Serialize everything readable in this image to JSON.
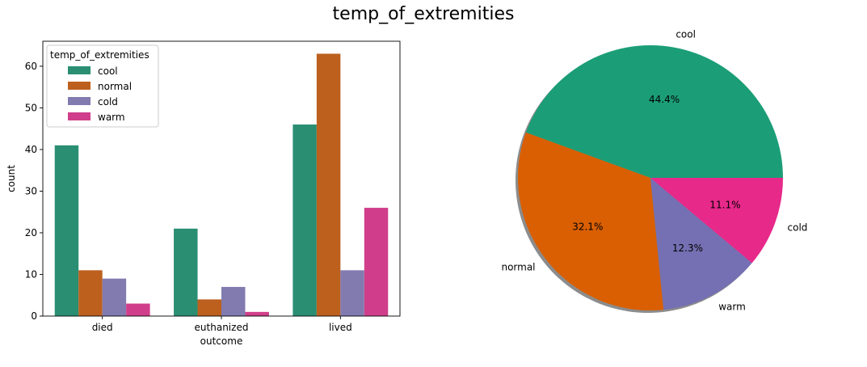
{
  "title": "temp_of_extremities",
  "chart_data": [
    {
      "type": "bar",
      "categories": [
        "died",
        "euthanized",
        "lived"
      ],
      "series": [
        {
          "name": "cool",
          "values": [
            41,
            21,
            46
          ],
          "color": "#2a8e72"
        },
        {
          "name": "normal",
          "values": [
            11,
            4,
            63
          ],
          "color": "#bd601e"
        },
        {
          "name": "cold",
          "values": [
            9,
            7,
            11
          ],
          "color": "#817bb0"
        },
        {
          "name": "warm",
          "values": [
            3,
            1,
            26
          ],
          "color": "#d03e8b"
        }
      ],
      "xlabel": "outcome",
      "ylabel": "count",
      "ylim": [
        0,
        66
      ],
      "yticks": [
        0,
        10,
        20,
        30,
        40,
        50,
        60
      ],
      "legend_title": "temp_of_extremities",
      "legend_position": "top-left",
      "grid": false
    },
    {
      "type": "pie",
      "labels": [
        "cool",
        "normal",
        "warm",
        "cold"
      ],
      "values": [
        44.4,
        32.1,
        12.3,
        11.1
      ],
      "pct_labels": [
        "44.4%",
        "32.1%",
        "12.3%",
        "11.1%"
      ],
      "colors": [
        "#1b9e77",
        "#d95f02",
        "#7570b3",
        "#e7298a"
      ],
      "shadow": true
    }
  ]
}
